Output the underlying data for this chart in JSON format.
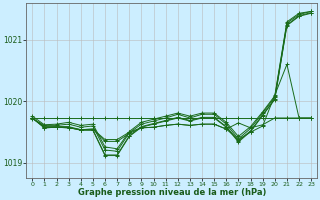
{
  "title": "Graphe pression niveau de la mer (hPa)",
  "background_color": "#cceeff",
  "grid_color": "#bbbbbb",
  "line_color": "#1a6b1a",
  "x_ticks": [
    0,
    1,
    2,
    3,
    4,
    5,
    6,
    7,
    8,
    9,
    10,
    11,
    12,
    13,
    14,
    15,
    16,
    17,
    18,
    19,
    20,
    21,
    22,
    23
  ],
  "ylim": [
    1018.75,
    1021.6
  ],
  "yticks": [
    1019,
    1020,
    1021
  ],
  "series": [
    [
      1019.72,
      1019.61,
      1019.61,
      1019.63,
      1019.58,
      1019.6,
      1019.21,
      1019.19,
      1019.49,
      1019.63,
      1019.68,
      1019.73,
      1019.79,
      1019.73,
      1019.79,
      1019.79,
      1019.63,
      1019.39,
      1019.56,
      1019.81,
      1020.07,
      1021.27,
      1021.41,
      1021.46
    ],
    [
      1019.76,
      1019.62,
      1019.63,
      1019.66,
      1019.61,
      1019.63,
      1019.26,
      1019.23,
      1019.51,
      1019.66,
      1019.71,
      1019.76,
      1019.81,
      1019.76,
      1019.81,
      1019.81,
      1019.66,
      1019.43,
      1019.59,
      1019.83,
      1020.09,
      1021.29,
      1021.43,
      1021.46
    ],
    [
      1019.73,
      1019.59,
      1019.59,
      1019.59,
      1019.54,
      1019.54,
      1019.13,
      1019.13,
      1019.44,
      1019.59,
      1019.64,
      1019.69,
      1019.74,
      1019.69,
      1019.74,
      1019.74,
      1019.59,
      1019.36,
      1019.52,
      1019.78,
      1020.04,
      1021.24,
      1021.39,
      1021.44
    ],
    [
      1019.73,
      1019.58,
      1019.58,
      1019.58,
      1019.53,
      1019.53,
      1019.12,
      1019.12,
      1019.43,
      1019.58,
      1019.63,
      1019.68,
      1019.73,
      1019.68,
      1019.73,
      1019.73,
      1019.58,
      1019.34,
      1019.51,
      1019.77,
      1020.03,
      1021.23,
      1021.38,
      1021.43
    ],
    [
      1019.73,
      1019.73,
      1019.73,
      1019.73,
      1019.73,
      1019.73,
      1019.73,
      1019.73,
      1019.73,
      1019.73,
      1019.73,
      1019.73,
      1019.73,
      1019.73,
      1019.73,
      1019.73,
      1019.73,
      1019.73,
      1019.73,
      1019.73,
      1019.73,
      1019.73,
      1019.73,
      1019.73
    ],
    [
      1019.73,
      1019.57,
      1019.58,
      1019.57,
      1019.54,
      1019.55,
      1019.35,
      1019.35,
      1019.48,
      1019.57,
      1019.58,
      1019.61,
      1019.63,
      1019.61,
      1019.63,
      1019.63,
      1019.55,
      1019.65,
      1019.57,
      1019.62,
      1019.73,
      1019.73,
      1019.73,
      1019.73
    ],
    [
      1019.73,
      1019.57,
      1019.58,
      1019.57,
      1019.54,
      1019.55,
      1019.38,
      1019.38,
      1019.5,
      1019.57,
      1019.58,
      1019.61,
      1019.63,
      1019.61,
      1019.63,
      1019.63,
      1019.55,
      1019.38,
      1019.5,
      1019.6,
      1020.1,
      1020.6,
      1019.73,
      1019.73
    ]
  ]
}
